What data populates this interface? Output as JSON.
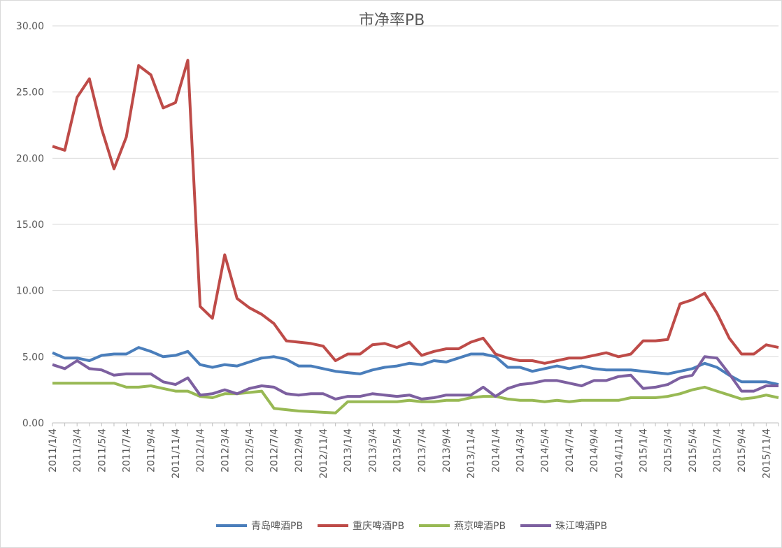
{
  "chart_data": {
    "type": "line",
    "title": "市净率PB",
    "categories": [
      "2011/1/4",
      null,
      "2011/3/4",
      null,
      "2011/5/4",
      null,
      "2011/7/4",
      null,
      "2011/9/4",
      null,
      "2011/11/4",
      null,
      "2012/1/4",
      null,
      "2012/3/4",
      null,
      "2012/5/4",
      null,
      "2012/7/4",
      null,
      "2012/9/4",
      null,
      "2012/11/4",
      null,
      "2013/1/4",
      null,
      "2013/3/4",
      null,
      "2013/5/4",
      null,
      "2013/7/4",
      null,
      "2013/9/4",
      null,
      "2013/11/4",
      null,
      "2014/1/4",
      null,
      "2014/3/4",
      null,
      "2014/5/4",
      null,
      "2014/7/4",
      null,
      "2014/9/4",
      null,
      "2014/11/4",
      null,
      "2015/1/4",
      null,
      "2015/3/4",
      null,
      "2015/5/4",
      null,
      "2015/7/4",
      null,
      "2015/9/4",
      null,
      "2015/11/4",
      null
    ],
    "series": [
      {
        "name": "青岛啤酒PB",
        "color": "#4a7ebb",
        "values": [
          5.3,
          4.9,
          4.9,
          4.7,
          5.1,
          5.2,
          5.2,
          5.7,
          5.4,
          5.0,
          5.1,
          5.4,
          4.4,
          4.2,
          4.4,
          4.3,
          4.6,
          4.9,
          5.0,
          4.8,
          4.3,
          4.3,
          4.1,
          3.9,
          3.8,
          3.7,
          4.0,
          4.2,
          4.3,
          4.5,
          4.4,
          4.7,
          4.6,
          4.9,
          5.2,
          5.2,
          5.0,
          4.2,
          4.2,
          3.9,
          4.1,
          4.3,
          4.1,
          4.3,
          4.1,
          4.0,
          4.0,
          4.0,
          3.9,
          3.8,
          3.7,
          3.9,
          4.1,
          4.5,
          4.2,
          3.6,
          3.1,
          3.1,
          3.1,
          2.9
        ]
      },
      {
        "name": "重庆啤酒PB",
        "color": "#be4b48",
        "values": [
          20.9,
          20.6,
          24.6,
          26.0,
          22.2,
          19.2,
          21.6,
          27.0,
          26.3,
          23.8,
          24.2,
          27.4,
          8.8,
          7.9,
          12.7,
          9.4,
          8.7,
          8.2,
          7.5,
          6.2,
          6.1,
          6.0,
          5.8,
          4.7,
          5.2,
          5.2,
          5.9,
          6.0,
          5.7,
          6.1,
          5.1,
          5.4,
          5.6,
          5.6,
          6.1,
          6.4,
          5.2,
          4.9,
          4.7,
          4.7,
          4.5,
          4.7,
          4.9,
          4.9,
          5.1,
          5.3,
          5.0,
          5.2,
          6.2,
          6.2,
          6.3,
          9.0,
          9.3,
          9.8,
          8.3,
          6.4,
          5.2,
          5.2,
          5.9,
          5.7
        ]
      },
      {
        "name": "燕京啤酒PB",
        "color": "#98b954",
        "values": [
          3.0,
          3.0,
          3.0,
          3.0,
          3.0,
          3.0,
          2.7,
          2.7,
          2.8,
          2.6,
          2.4,
          2.4,
          2.0,
          1.9,
          2.2,
          2.2,
          2.3,
          2.4,
          1.1,
          1.0,
          0.9,
          0.85,
          0.8,
          0.75,
          1.6,
          1.6,
          1.6,
          1.6,
          1.6,
          1.7,
          1.6,
          1.6,
          1.7,
          1.7,
          1.9,
          2.0,
          2.0,
          1.8,
          1.7,
          1.7,
          1.6,
          1.7,
          1.6,
          1.7,
          1.7,
          1.7,
          1.7,
          1.9,
          1.9,
          1.9,
          2.0,
          2.2,
          2.5,
          2.7,
          2.4,
          2.1,
          1.8,
          1.9,
          2.1,
          1.9
        ]
      },
      {
        "name": "珠江啤酒PB",
        "color": "#7d60a0",
        "values": [
          4.4,
          4.1,
          4.7,
          4.1,
          4.0,
          3.6,
          3.7,
          3.7,
          3.7,
          3.1,
          2.9,
          3.4,
          2.1,
          2.2,
          2.5,
          2.2,
          2.6,
          2.8,
          2.7,
          2.2,
          2.1,
          2.2,
          2.2,
          1.8,
          2.0,
          2.0,
          2.2,
          2.1,
          2.0,
          2.1,
          1.8,
          1.9,
          2.1,
          2.1,
          2.1,
          2.7,
          2.0,
          2.6,
          2.9,
          3.0,
          3.2,
          3.2,
          3.0,
          2.8,
          3.2,
          3.2,
          3.5,
          3.6,
          2.6,
          2.7,
          2.9,
          3.4,
          3.6,
          5.0,
          4.9,
          3.7,
          2.4,
          2.4,
          2.8,
          2.8
        ]
      }
    ],
    "ylim": [
      0,
      30
    ],
    "yticks": [
      {
        "value": 0,
        "label": "0.00"
      },
      {
        "value": 5,
        "label": "5.00"
      },
      {
        "value": 10,
        "label": "10.00"
      },
      {
        "value": 15,
        "label": "15.00"
      },
      {
        "value": 20,
        "label": "20.00"
      },
      {
        "value": 25,
        "label": "25.00"
      },
      {
        "value": 30,
        "label": "30.00"
      }
    ],
    "grid": true,
    "legend": "bottom"
  }
}
